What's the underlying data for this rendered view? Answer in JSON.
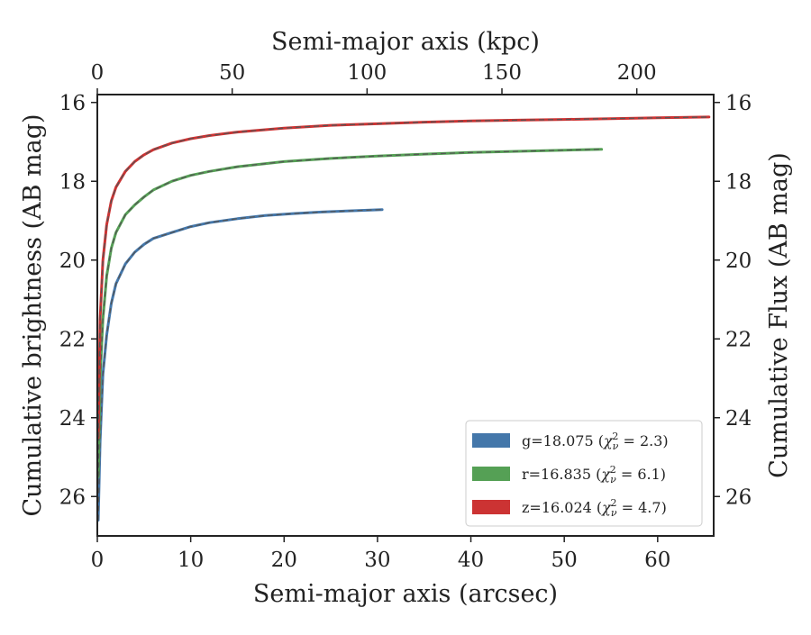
{
  "chart_data": {
    "type": "line",
    "xlabel": "Semi-major axis (arcsec)",
    "ylabel": "Cumulative brightness (AB mag)",
    "x2label": "Semi-major axis (kpc)",
    "y2label": "Cumulative Flux (AB mag)",
    "xlim": [
      0,
      66
    ],
    "ylim": [
      27,
      15.8
    ],
    "y_inverted": true,
    "x2lim": [
      0,
      228.5
    ],
    "xticks": [
      0,
      10,
      20,
      30,
      40,
      50,
      60
    ],
    "yticks": [
      16,
      18,
      20,
      22,
      24,
      26
    ],
    "x2ticks": [
      0,
      50,
      100,
      150,
      200
    ],
    "grid": false,
    "legend_placement": "lower-right",
    "legend": [
      {
        "band": "g",
        "label": "g=18.075",
        "chi": "2.3",
        "color": "#4477aa"
      },
      {
        "band": "r",
        "label": "r=16.835",
        "chi": "6.1",
        "color": "#55a055"
      },
      {
        "band": "z",
        "label": "z=16.024",
        "chi": "4.7",
        "color": "#cc3333"
      }
    ],
    "model_line_color": "#555555",
    "series": [
      {
        "band": "g",
        "color": "#4477aa",
        "x": [
          0.1,
          0.3,
          0.6,
          1.0,
          1.5,
          2.0,
          3.0,
          4.0,
          5.0,
          6.0,
          8.0,
          10.0,
          12.0,
          15.0,
          18.0,
          21.0,
          24.0,
          27.0,
          30.5
        ],
        "y": [
          26.6,
          24.6,
          22.9,
          21.9,
          21.1,
          20.6,
          20.1,
          19.8,
          19.6,
          19.45,
          19.3,
          19.15,
          19.05,
          18.95,
          18.87,
          18.82,
          18.78,
          18.75,
          18.72
        ]
      },
      {
        "band": "r",
        "color": "#55a055",
        "x": [
          0.1,
          0.3,
          0.6,
          1.0,
          1.5,
          2.0,
          3.0,
          4.0,
          5.0,
          6.0,
          8.0,
          10.0,
          12.0,
          15.0,
          20.0,
          25.0,
          30.0,
          35.0,
          40.0,
          45.0,
          50.0,
          54.0
        ],
        "y": [
          25.5,
          23.0,
          21.5,
          20.4,
          19.7,
          19.3,
          18.85,
          18.6,
          18.4,
          18.22,
          18.0,
          17.85,
          17.75,
          17.63,
          17.5,
          17.42,
          17.36,
          17.31,
          17.27,
          17.24,
          17.21,
          17.19
        ]
      },
      {
        "band": "z",
        "color": "#cc3333",
        "x": [
          0.1,
          0.3,
          0.6,
          1.0,
          1.5,
          2.0,
          3.0,
          4.0,
          5.0,
          6.0,
          8.0,
          10.0,
          12.0,
          15.0,
          20.0,
          25.0,
          30.0,
          35.0,
          40.0,
          45.0,
          50.0,
          55.0,
          60.0,
          65.5
        ],
        "y": [
          24.5,
          21.5,
          20.0,
          19.1,
          18.5,
          18.15,
          17.75,
          17.5,
          17.33,
          17.2,
          17.03,
          16.92,
          16.84,
          16.75,
          16.65,
          16.58,
          16.54,
          16.5,
          16.47,
          16.45,
          16.43,
          16.41,
          16.39,
          16.37
        ]
      }
    ]
  }
}
